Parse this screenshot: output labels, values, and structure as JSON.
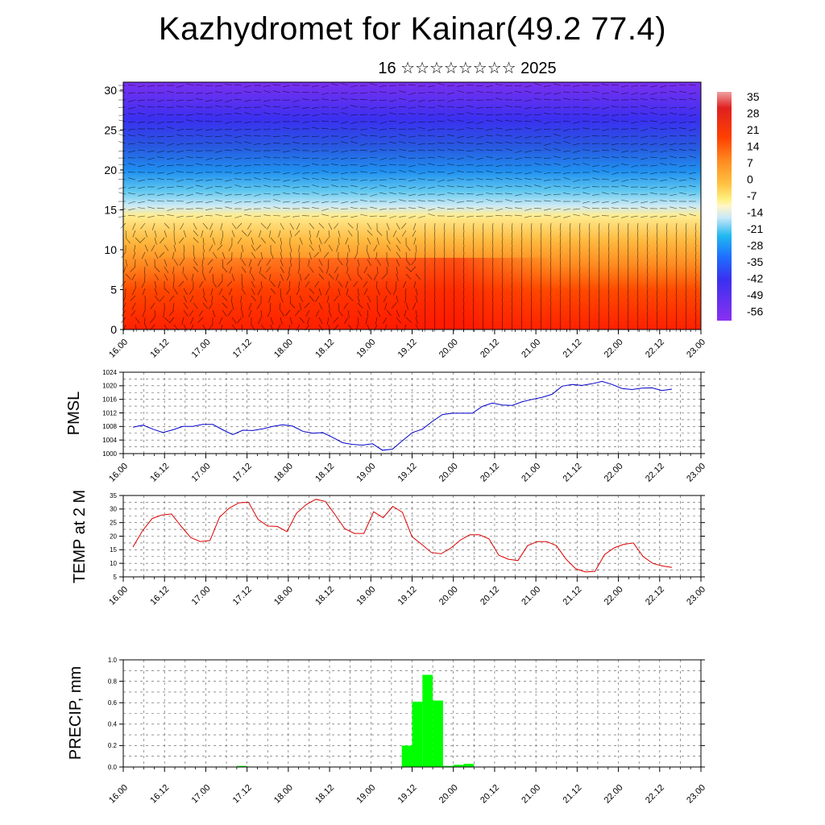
{
  "title": "Kazhydromet for Kainar(49.2 77.4)",
  "subtitle": "16 ☆☆☆☆☆☆☆☆ 2025",
  "time_labels": [
    "16.00",
    "16.12",
    "17.00",
    "17.12",
    "18.00",
    "18.12",
    "19.00",
    "19.12",
    "20.00",
    "20.12",
    "21.00",
    "21.12",
    "22.00",
    "22.12",
    "23.00"
  ],
  "chart_data": [
    {
      "id": "cross-section",
      "type": "heatmap",
      "title": "",
      "ylabel": "",
      "yticks": [
        0,
        5,
        10,
        15,
        20,
        25,
        30
      ],
      "ylim": [
        0,
        31
      ],
      "colorbar": {
        "labels": [
          "35",
          "28",
          "21",
          "14",
          "7",
          "0",
          "-7",
          "-14",
          "-21",
          "-28",
          "-35",
          "-42",
          "-49",
          "-56"
        ],
        "colors": [
          "#f0a0a0",
          "#e02020",
          "#ff4000",
          "#ff7a10",
          "#ffb030",
          "#ffe060",
          "#fff4b0",
          "#c8e8f8",
          "#20b8f0",
          "#1e90ff",
          "#2050e0",
          "#3a30f0",
          "#5010f0",
          "#8a30f0"
        ]
      },
      "description_levels_temp_c": {
        "level_0": 30,
        "level_10": 10,
        "level_15": -5,
        "level_20": -40,
        "level_25": -50,
        "level_30": -55
      }
    },
    {
      "id": "pmsl",
      "type": "line",
      "ylabel": "PMSL",
      "ylim": [
        1000,
        1024
      ],
      "yticks": [
        1000,
        1004,
        1008,
        1012,
        1016,
        1020,
        1024
      ],
      "color": "#0000cc",
      "x_step_hours": 3,
      "values": [
        1007.8,
        1008.4,
        1007.2,
        1006.2,
        1007,
        1008,
        1008,
        1008.6,
        1008.6,
        1007,
        1005.6,
        1006.9,
        1006.8,
        1007.3,
        1008,
        1008.5,
        1008.1,
        1006.6,
        1006,
        1006.2,
        1004.8,
        1003.2,
        1002.7,
        1002.5,
        1002.9,
        1001,
        1001.3,
        1003.8,
        1006.2,
        1007.2,
        1009.5,
        1011.5,
        1011.9,
        1011.9,
        1011.9,
        1013.9,
        1014.9,
        1014.3,
        1014.2,
        1015.3,
        1016,
        1016.6,
        1017.5,
        1019.9,
        1020.4,
        1020.1,
        1020.6,
        1021.3,
        1020.4,
        1019.2,
        1018.9,
        1019.3,
        1019.4,
        1018.6,
        1019
      ]
    },
    {
      "id": "temp2m",
      "type": "line",
      "ylabel": "TEMP at 2 M",
      "ylim": [
        5,
        35
      ],
      "yticks": [
        5,
        10,
        15,
        20,
        25,
        30,
        35
      ],
      "color": "#dd0000",
      "x_step_hours": 3,
      "values": [
        16,
        22,
        26.5,
        27.8,
        28.2,
        23.7,
        19.5,
        18,
        18.4,
        27,
        30.3,
        32.3,
        32.5,
        26.2,
        23.7,
        23.6,
        21.7,
        28.5,
        31.6,
        33.6,
        32.8,
        27.9,
        22.8,
        21,
        21,
        29,
        26.8,
        31,
        28.8,
        19.8,
        17,
        14,
        13.5,
        15.5,
        18.5,
        20.5,
        20.5,
        19,
        13,
        11.5,
        11,
        16.5,
        18,
        18,
        16.5,
        11.5,
        8,
        6.8,
        7,
        13.2,
        15.7,
        17,
        17.5,
        12.5,
        10,
        9,
        8.5
      ]
    },
    {
      "id": "precip",
      "type": "bar",
      "ylabel": "PRECIP, mm",
      "ylim": [
        0,
        1.0
      ],
      "yticks": [
        0.0,
        0.2,
        0.4,
        0.6,
        0.8,
        1.0
      ],
      "yticklabels": [
        "0.0",
        "0.2",
        "0.4",
        "0.6",
        "0.8",
        "1.0"
      ],
      "color": "#00ff00",
      "bar_width_hours": 3,
      "bars": [
        {
          "start_hour": 33,
          "value": 0.01
        },
        {
          "start_hour": 81,
          "value": 0.2
        },
        {
          "start_hour": 84,
          "value": 0.61
        },
        {
          "start_hour": 87,
          "value": 0.86
        },
        {
          "start_hour": 90,
          "value": 0.62
        },
        {
          "start_hour": 93,
          "value": 0.01
        },
        {
          "start_hour": 96,
          "value": 0.02
        },
        {
          "start_hour": 99,
          "value": 0.03
        }
      ]
    }
  ]
}
